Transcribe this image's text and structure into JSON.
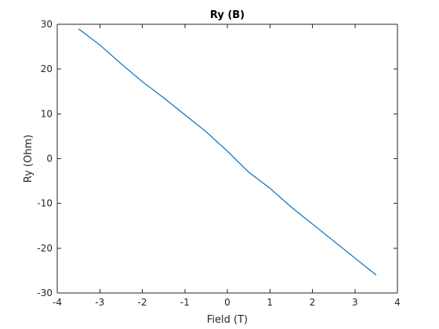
{
  "chart_data": {
    "type": "line",
    "title": "Ry (B)",
    "xlabel": "Field (T)",
    "ylabel": "Ry (Ohm)",
    "xlim": [
      -4,
      4
    ],
    "ylim": [
      -30,
      30
    ],
    "xticks": [
      -4,
      -3,
      -2,
      -1,
      0,
      1,
      2,
      3,
      4
    ],
    "yticks": [
      -30,
      -20,
      -10,
      0,
      10,
      20,
      30
    ],
    "grid": false,
    "box": true,
    "series": [
      {
        "color": "#0072BD",
        "x": [
          -3.5,
          -3.0,
          -2.5,
          -2.0,
          -1.5,
          -1.0,
          -0.5,
          -0.2,
          0.0,
          0.2,
          0.5,
          1.0,
          1.5,
          2.0,
          2.5,
          3.0,
          3.5
        ],
        "y": [
          29.0,
          25.4,
          21.2,
          17.2,
          13.6,
          9.8,
          6.0,
          3.4,
          1.7,
          -0.2,
          -3.0,
          -6.6,
          -10.8,
          -14.6,
          -18.4,
          -22.2,
          -26.0
        ]
      }
    ]
  }
}
